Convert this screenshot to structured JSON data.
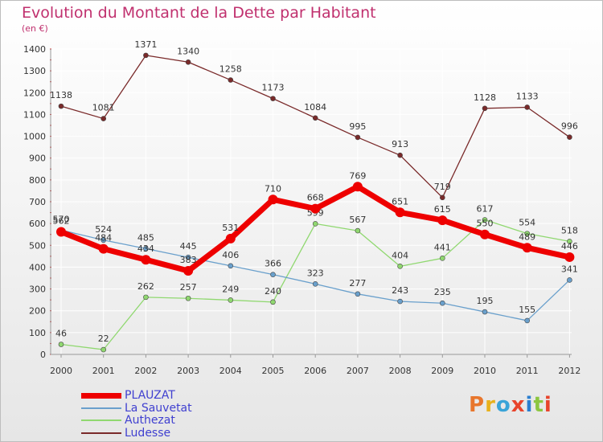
{
  "title": "Evolution du Montant de la Dette par Habitant",
  "subtitle": "(en €)",
  "logo": {
    "text": "Proxiti",
    "colors": [
      "#e8762c",
      "#e8b11c",
      "#3aa4d8",
      "#e8442c",
      "#2c7fd0",
      "#8cc63f",
      "#e8442c"
    ]
  },
  "chart_data": {
    "type": "line",
    "title": "Evolution du Montant de la Dette par Habitant",
    "ylabel": "(en €)",
    "xlabel": "",
    "x": [
      "2000",
      "2001",
      "2002",
      "2003",
      "2004",
      "2005",
      "2006",
      "2007",
      "2008",
      "2009",
      "2010",
      "2011",
      "2012"
    ],
    "ylim": [
      0,
      1400
    ],
    "yticks": [
      0,
      100,
      200,
      300,
      400,
      500,
      600,
      700,
      800,
      900,
      1000,
      1100,
      1200,
      1300,
      1400
    ],
    "grid": true,
    "legend_position": "bottom-left",
    "series": [
      {
        "name": "Ludesse",
        "color": "#7a2a2a",
        "values": [
          1138,
          1081,
          1371,
          1340,
          1258,
          1173,
          1084,
          995,
          913,
          719,
          1128,
          1133,
          996
        ],
        "labels": [
          "1138",
          "1081",
          "1371",
          "1340",
          "1258",
          "1173",
          "1084",
          "995",
          "913",
          "719",
          "1128",
          "1133",
          "996"
        ]
      },
      {
        "name": "Authezat",
        "color": "#90d870",
        "values": [
          46,
          22,
          262,
          257,
          249,
          240,
          599,
          567,
          404,
          441,
          617,
          554,
          518
        ],
        "labels": [
          "46",
          "22",
          "262",
          "257",
          "249",
          "240",
          "599",
          "567",
          "404",
          "441",
          "617",
          "554",
          "518"
        ]
      },
      {
        "name": "La Sauvetat",
        "color": "#6aa0cc",
        "values": [
          570,
          524,
          485,
          445,
          406,
          366,
          323,
          277,
          243,
          235,
          195,
          155,
          341
        ],
        "labels": [
          "570",
          "524",
          "485",
          "445",
          "406",
          "366",
          "323",
          "277",
          "243",
          "235",
          "195",
          "155",
          "341"
        ]
      },
      {
        "name": "PLAUZAT",
        "color": "#ee0000",
        "values": [
          562,
          484,
          434,
          383,
          531,
          710,
          668,
          769,
          651,
          615,
          550,
          489,
          446
        ],
        "labels": [
          "562",
          "484",
          "434",
          "383",
          "531",
          "710",
          "668",
          "769",
          "651",
          "615",
          "550",
          "489",
          "446"
        ]
      }
    ],
    "legend": [
      {
        "name": "PLAUZAT",
        "color": "#ee0000"
      },
      {
        "name": "La Sauvetat",
        "color": "#6aa0cc"
      },
      {
        "name": "Authezat",
        "color": "#90d870"
      },
      {
        "name": "Ludesse",
        "color": "#7a2a2a"
      }
    ]
  }
}
